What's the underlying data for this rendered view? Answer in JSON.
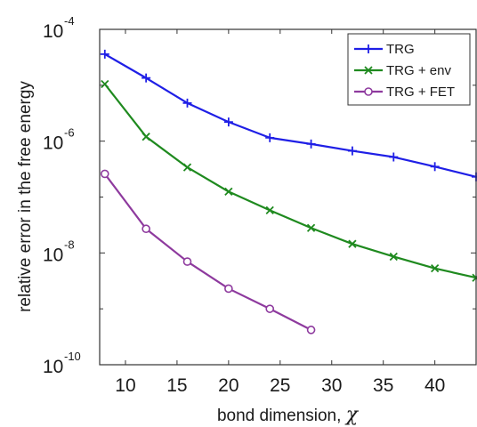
{
  "chart_data": {
    "type": "line",
    "title": "",
    "xlabel_text": "bond dimension, ",
    "xlabel_symbol": "χ",
    "ylabel": "relative error in the free energy",
    "xlim": [
      7.5,
      44
    ],
    "ylim": [
      1e-10,
      0.0001
    ],
    "yscale": "log",
    "x_ticks": [
      10,
      15,
      20,
      25,
      30,
      35,
      40
    ],
    "y_ticks": [
      {
        "value": 1e-10,
        "base": "10",
        "exp": "-10"
      },
      {
        "value": 1e-08,
        "base": "10",
        "exp": "-8"
      },
      {
        "value": 1e-06,
        "base": "10",
        "exp": "-6"
      },
      {
        "value": 0.0001,
        "base": "10",
        "exp": "-4"
      }
    ],
    "grid": false,
    "legend_position": "top-right",
    "series": [
      {
        "name": "TRG",
        "color": "#1f1fe6",
        "marker": "plus",
        "x": [
          8,
          12,
          16,
          20,
          24,
          28,
          32,
          36,
          40,
          44
        ],
        "y": [
          3.6e-05,
          1.35e-05,
          4.8e-06,
          2.2e-06,
          1.15e-06,
          8.9e-07,
          6.7e-07,
          5.2e-07,
          3.5e-07,
          2.3e-07
        ]
      },
      {
        "name": "TRG + env",
        "color": "#1f8a1f",
        "marker": "x",
        "x": [
          8,
          12,
          16,
          20,
          24,
          28,
          32,
          36,
          40,
          44
        ],
        "y": [
          1.05e-05,
          1.2e-06,
          3.4e-07,
          1.25e-07,
          5.8e-08,
          2.8e-08,
          1.45e-08,
          8.6e-09,
          5.3e-09,
          3.6e-09
        ]
      },
      {
        "name": "TRG + FET",
        "color": "#8e3a9e",
        "marker": "circle",
        "x": [
          8,
          12,
          16,
          20,
          24,
          28
        ],
        "y": [
          2.6e-07,
          2.7e-08,
          7e-09,
          2.3e-09,
          1e-09,
          4.2e-10
        ]
      }
    ]
  }
}
